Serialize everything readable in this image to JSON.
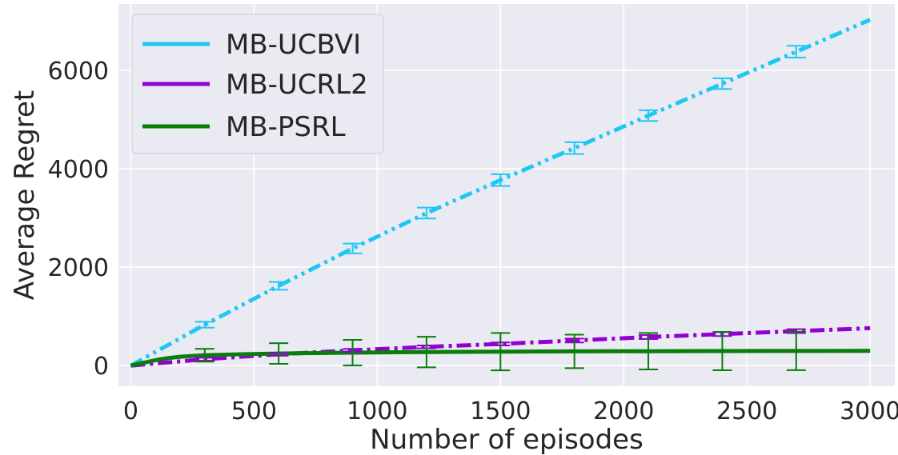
{
  "chart_data": {
    "type": "line",
    "xlabel": "Number of episodes",
    "ylabel": "Average Regret",
    "xlim": [
      -50,
      3100
    ],
    "ylim": [
      -420,
      7350
    ],
    "xticks": [
      0,
      500,
      1000,
      1500,
      2000,
      2500,
      3000
    ],
    "yticks": [
      0,
      2000,
      4000,
      6000
    ],
    "grid": true,
    "legend_position": "top-left",
    "series": [
      {
        "name": "MB-UCBVI",
        "color": "#1ec8f5",
        "dash": "dash-dot-dot",
        "x": [
          0,
          300,
          600,
          900,
          1200,
          1500,
          1800,
          2100,
          2400,
          2700,
          3000
        ],
        "y": [
          0,
          830,
          1620,
          2380,
          3100,
          3770,
          4420,
          5080,
          5730,
          6380,
          7030
        ],
        "error_x": [
          300,
          600,
          900,
          1200,
          1500,
          1800,
          2100,
          2400,
          2700
        ],
        "error_y": [
          830,
          1620,
          2380,
          3100,
          3770,
          4420,
          5080,
          5730,
          6380
        ],
        "error_half": [
          60,
          80,
          100,
          110,
          120,
          120,
          110,
          110,
          120
        ]
      },
      {
        "name": "MB-UCRL2",
        "color": "#9300d4",
        "dash": "dash-dot",
        "x": [
          0,
          300,
          600,
          900,
          1200,
          1500,
          1800,
          2100,
          2400,
          2700,
          3000
        ],
        "y": [
          0,
          130,
          230,
          310,
          380,
          440,
          510,
          580,
          640,
          700,
          760
        ],
        "error_x": [
          300,
          600,
          900,
          1200,
          1500,
          1800,
          2100,
          2400,
          2700
        ],
        "error_y": [
          130,
          230,
          310,
          380,
          440,
          510,
          580,
          640,
          700
        ],
        "error_half": [
          30,
          30,
          30,
          30,
          30,
          40,
          40,
          40,
          40
        ]
      },
      {
        "name": "MB-PSRL",
        "color": "#0a7d0a",
        "dash": "solid",
        "x": [
          0,
          50,
          100,
          150,
          200,
          300,
          450,
          600,
          750,
          900,
          1200,
          1500,
          1800,
          2100,
          2400,
          2700,
          3000
        ],
        "y": [
          0,
          55,
          110,
          150,
          180,
          210,
          230,
          245,
          255,
          262,
          275,
          283,
          288,
          292,
          295,
          297,
          300
        ],
        "error_x": [
          300,
          600,
          900,
          1200,
          1500,
          1800,
          2100,
          2400,
          2700
        ],
        "error_y": [
          210,
          245,
          262,
          275,
          283,
          288,
          292,
          295,
          297
        ],
        "error_half": [
          130,
          210,
          260,
          310,
          380,
          340,
          370,
          390,
          390
        ]
      }
    ]
  }
}
